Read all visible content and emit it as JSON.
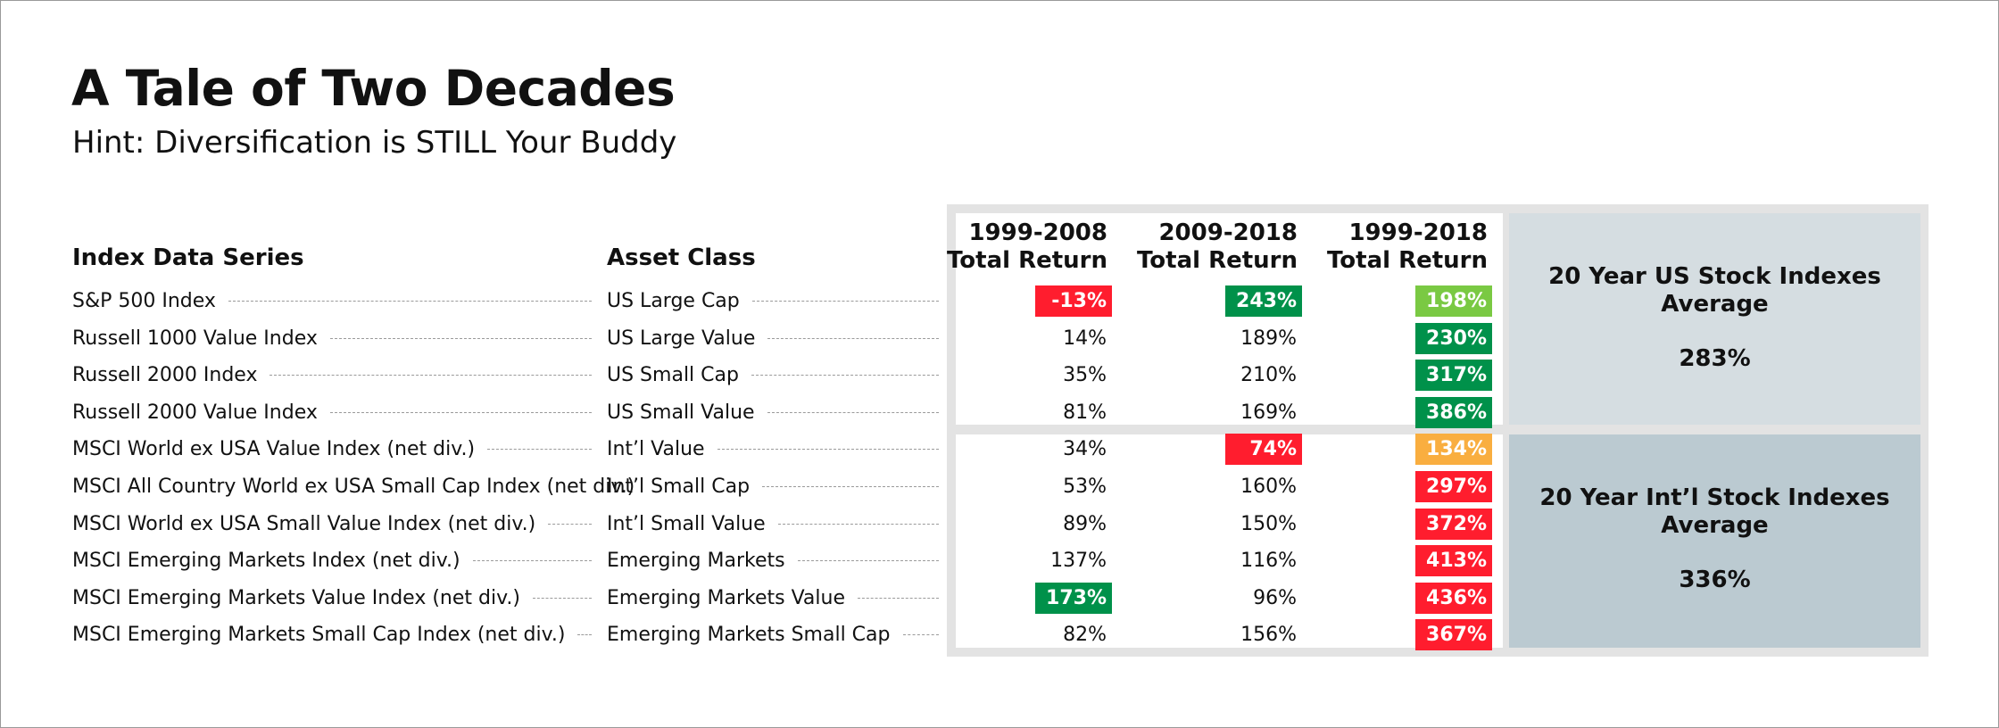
{
  "title": "A Tale of Two Decades",
  "subtitle": "Hint: Diversification is STILL Your Buddy",
  "colors": {
    "red": "#ff1d2e",
    "dark_green": "#00914a",
    "light_green": "#7ac943",
    "orange": "#f9ae40",
    "panel_gray": "#e3e3e3",
    "us_summary_bg": "#d5dde1",
    "intl_summary_bg": "#bbcad1"
  },
  "headers": {
    "index": "Index Data Series",
    "asset_class": "Asset Class",
    "p1": [
      "1999-2008",
      "Total Return"
    ],
    "p2": [
      "2009-2018",
      "Total Return"
    ],
    "p3": [
      "1999-2018",
      "Total Return"
    ]
  },
  "summary": {
    "us": {
      "title": [
        "20 Year US Stock Indexes",
        "Average"
      ],
      "value": "283%"
    },
    "intl": {
      "title": [
        "20 Year Int’l Stock Indexes",
        "Average"
      ],
      "value": "336%"
    }
  },
  "chart_data": {
    "type": "table",
    "title": "A Tale of Two Decades",
    "subtitle": "Hint: Diversification is STILL Your Buddy",
    "columns": [
      "Index Data Series",
      "Asset Class",
      "1999-2008 Total Return",
      "2009-2018 Total Return",
      "1999-2018 Total Return"
    ],
    "rows": [
      {
        "index": "S&P 500 Index",
        "asset_class": "US Large Cap",
        "p1": "-13%",
        "p1_hl": "red",
        "p2": "243%",
        "p2_hl": "dark_green",
        "p3": "198%",
        "p3_hl": "light_green"
      },
      {
        "index": "Russell 1000 Value Index",
        "asset_class": "US Large Value",
        "p1": "14%",
        "p1_hl": "",
        "p2": "189%",
        "p2_hl": "",
        "p3": "230%",
        "p3_hl": "dark_green"
      },
      {
        "index": "Russell 2000 Index",
        "asset_class": "US Small Cap",
        "p1": "35%",
        "p1_hl": "",
        "p2": "210%",
        "p2_hl": "",
        "p3": "317%",
        "p3_hl": "dark_green"
      },
      {
        "index": "Russell 2000 Value Index",
        "asset_class": "US Small Value",
        "p1": "81%",
        "p1_hl": "",
        "p2": "169%",
        "p2_hl": "",
        "p3": "386%",
        "p3_hl": "dark_green"
      },
      {
        "index": "MSCI World ex USA Value Index (net div.)",
        "asset_class": "Int’l Value",
        "p1": "34%",
        "p1_hl": "",
        "p2": "74%",
        "p2_hl": "red",
        "p3": "134%",
        "p3_hl": "orange"
      },
      {
        "index": "MSCI All Country World ex USA Small Cap Index (net div.)",
        "asset_class": "Int’l Small Cap",
        "p1": "53%",
        "p1_hl": "",
        "p2": "160%",
        "p2_hl": "",
        "p3": "297%",
        "p3_hl": "red"
      },
      {
        "index": "MSCI World ex USA Small Value Index (net div.)",
        "asset_class": "Int’l Small Value",
        "p1": "89%",
        "p1_hl": "",
        "p2": "150%",
        "p2_hl": "",
        "p3": "372%",
        "p3_hl": "red"
      },
      {
        "index": "MSCI Emerging Markets Index (net div.)",
        "asset_class": "Emerging Markets",
        "p1": "137%",
        "p1_hl": "",
        "p2": "116%",
        "p2_hl": "",
        "p3": "413%",
        "p3_hl": "red"
      },
      {
        "index": "MSCI Emerging Markets Value Index (net div.)",
        "asset_class": "Emerging Markets Value",
        "p1": "173%",
        "p1_hl": "dark_green",
        "p2": "96%",
        "p2_hl": "",
        "p3": "436%",
        "p3_hl": "red"
      },
      {
        "index": "MSCI Emerging Markets Small Cap Index (net div.)",
        "asset_class": "Emerging Markets Small Cap",
        "p1": "82%",
        "p1_hl": "",
        "p2": "156%",
        "p2_hl": "",
        "p3": "367%",
        "p3_hl": "red"
      }
    ]
  }
}
